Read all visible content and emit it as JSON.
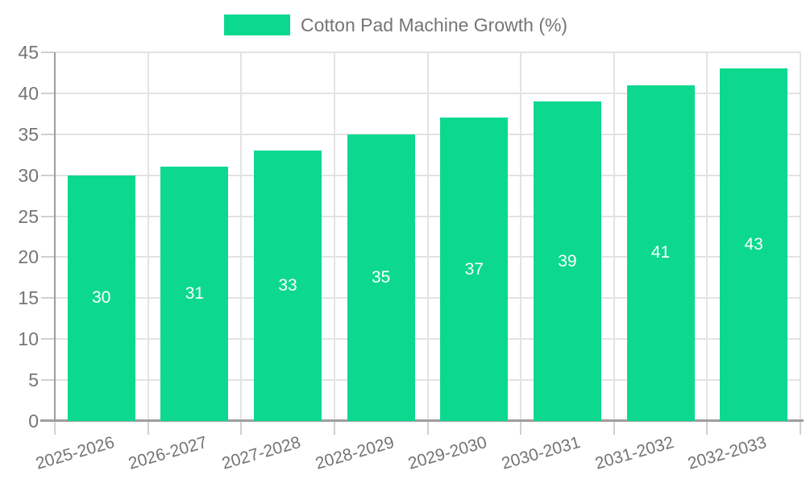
{
  "chart_data": {
    "type": "bar",
    "title": "Cotton Pad Machine Growth (%)",
    "categories": [
      "2025-2026",
      "2026-2027",
      "2027-2028",
      "2028-2029",
      "2029-2030",
      "2030-2031",
      "2031-2032",
      "2032-2033"
    ],
    "values": [
      30,
      31,
      33,
      35,
      37,
      39,
      41,
      43
    ],
    "xlabel": "",
    "ylabel": "",
    "ylim": [
      0,
      45
    ],
    "yticks": [
      0,
      5,
      10,
      15,
      20,
      25,
      30,
      35,
      40,
      45
    ],
    "grid": true,
    "legend_position": "top-center",
    "legend_label": "Cotton Pad Machine Growth (%)",
    "x_label_rotation_deg": -16,
    "colors": {
      "bar": "#0cd98f",
      "value_label": "#ffffff",
      "tick_label": "#757575",
      "legend_text": "#757575",
      "gridline": "#e3e3e3",
      "tick_mark": "#d0d0d0",
      "axis_line": "#9e9e9e",
      "background": "#ffffff"
    }
  }
}
